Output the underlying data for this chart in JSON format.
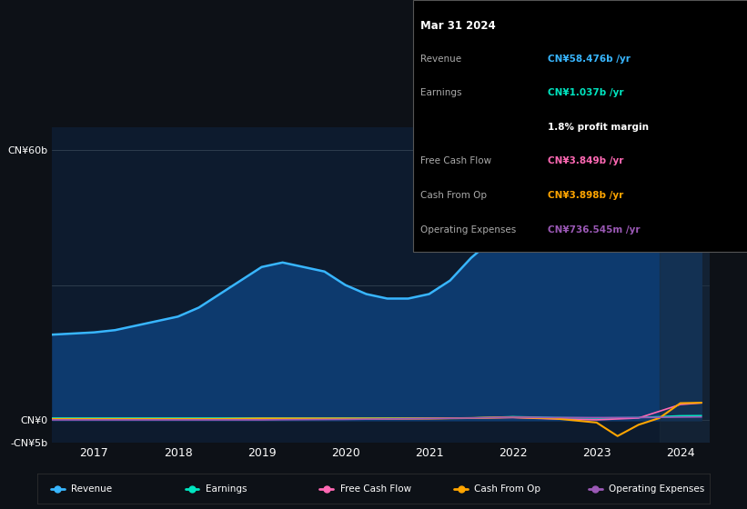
{
  "bg_color": "#0d1117",
  "plot_bg_color": "#0d1b2e",
  "title_date": "Mar 31 2024",
  "info_box": {
    "Revenue": {
      "value": "CN¥58.476b /yr",
      "color": "#38b6ff"
    },
    "Earnings": {
      "value": "CN¥1.037b /yr",
      "color": "#00e5c0"
    },
    "profit_margin": {
      "value": "1.8% profit margin",
      "color": "#ffffff"
    },
    "Free Cash Flow": {
      "value": "CN¥3.849b /yr",
      "color": "#ff69b4"
    },
    "Cash From Op": {
      "value": "CN¥3.898b /yr",
      "color": "#ffa500"
    },
    "Operating Expenses": {
      "value": "CN¥736.545m /yr",
      "color": "#9b59b6"
    }
  },
  "ylim": [
    -5,
    65
  ],
  "yticks": [
    -5,
    0,
    30,
    60
  ],
  "ytick_labels": [
    "-CN¥5b",
    "CN¥0",
    "",
    "CN¥60b"
  ],
  "xlabel_ticks": [
    2017,
    2018,
    2019,
    2020,
    2021,
    2022,
    2023,
    2024
  ],
  "revenue_color": "#38b6ff",
  "revenue_fill_color": "#0d3a6e",
  "earnings_color": "#00e5c0",
  "fcf_color": "#ff69b4",
  "cashfromop_color": "#ffa500",
  "opex_color": "#9b59b6",
  "revenue_x": [
    2016.5,
    2017.0,
    2017.25,
    2017.5,
    2017.75,
    2018.0,
    2018.25,
    2018.5,
    2018.75,
    2019.0,
    2019.25,
    2019.5,
    2019.75,
    2020.0,
    2020.25,
    2020.5,
    2020.75,
    2021.0,
    2021.25,
    2021.5,
    2021.75,
    2022.0,
    2022.25,
    2022.5,
    2022.75,
    2023.0,
    2023.25,
    2023.5,
    2023.75,
    2024.0,
    2024.25
  ],
  "revenue_y": [
    19,
    19.5,
    20,
    21,
    22,
    23,
    25,
    28,
    31,
    34,
    35,
    34,
    33,
    30,
    28,
    27,
    27,
    28,
    31,
    36,
    40,
    44,
    46,
    44,
    42,
    40,
    42,
    46,
    50,
    57,
    58.5
  ],
  "earnings_x": [
    2016.5,
    2017.0,
    2017.5,
    2018.0,
    2018.5,
    2019.0,
    2019.5,
    2020.0,
    2020.5,
    2021.0,
    2021.5,
    2022.0,
    2022.5,
    2023.0,
    2023.5,
    2024.0,
    2024.25
  ],
  "earnings_y": [
    0.5,
    0.5,
    0.5,
    0.5,
    0.5,
    0.5,
    0.5,
    0.5,
    0.5,
    0.5,
    0.5,
    0.8,
    0.6,
    0.5,
    0.6,
    1.0,
    1.037
  ],
  "fcf_x": [
    2016.5,
    2017.0,
    2017.5,
    2018.0,
    2018.5,
    2019.0,
    2019.5,
    2020.0,
    2020.5,
    2021.0,
    2021.5,
    2022.0,
    2022.5,
    2023.0,
    2023.5,
    2024.0,
    2024.25
  ],
  "fcf_y": [
    0.2,
    0.2,
    0.2,
    0.2,
    0.2,
    0.2,
    0.3,
    0.3,
    0.3,
    0.4,
    0.5,
    0.6,
    0.3,
    0.1,
    0.5,
    3.5,
    3.849
  ],
  "cashfromop_x": [
    2016.5,
    2017.0,
    2017.5,
    2018.0,
    2018.5,
    2019.0,
    2019.5,
    2020.0,
    2020.5,
    2021.0,
    2021.5,
    2022.0,
    2022.5,
    2023.0,
    2023.25,
    2023.5,
    2023.75,
    2024.0,
    2024.25
  ],
  "cashfromop_y": [
    0.3,
    0.3,
    0.3,
    0.3,
    0.3,
    0.4,
    0.4,
    0.4,
    0.4,
    0.4,
    0.5,
    0.7,
    0.4,
    -0.5,
    -3.5,
    -1.0,
    0.5,
    3.8,
    3.898
  ],
  "opex_x": [
    2016.5,
    2017.0,
    2017.5,
    2018.0,
    2018.5,
    2019.0,
    2019.5,
    2020.0,
    2020.5,
    2021.0,
    2021.5,
    2022.0,
    2022.5,
    2023.0,
    2023.5,
    2024.0,
    2024.25
  ],
  "opex_y": [
    0.1,
    0.1,
    0.1,
    0.1,
    0.1,
    0.1,
    0.15,
    0.2,
    0.3,
    0.4,
    0.5,
    0.7,
    0.6,
    0.6,
    0.6,
    0.7,
    0.74
  ],
  "legend_items": [
    {
      "label": "Revenue",
      "color": "#38b6ff"
    },
    {
      "label": "Earnings",
      "color": "#00e5c0"
    },
    {
      "label": "Free Cash Flow",
      "color": "#ff69b4"
    },
    {
      "label": "Cash From Op",
      "color": "#ffa500"
    },
    {
      "label": "Operating Expenses",
      "color": "#9b59b6"
    }
  ]
}
